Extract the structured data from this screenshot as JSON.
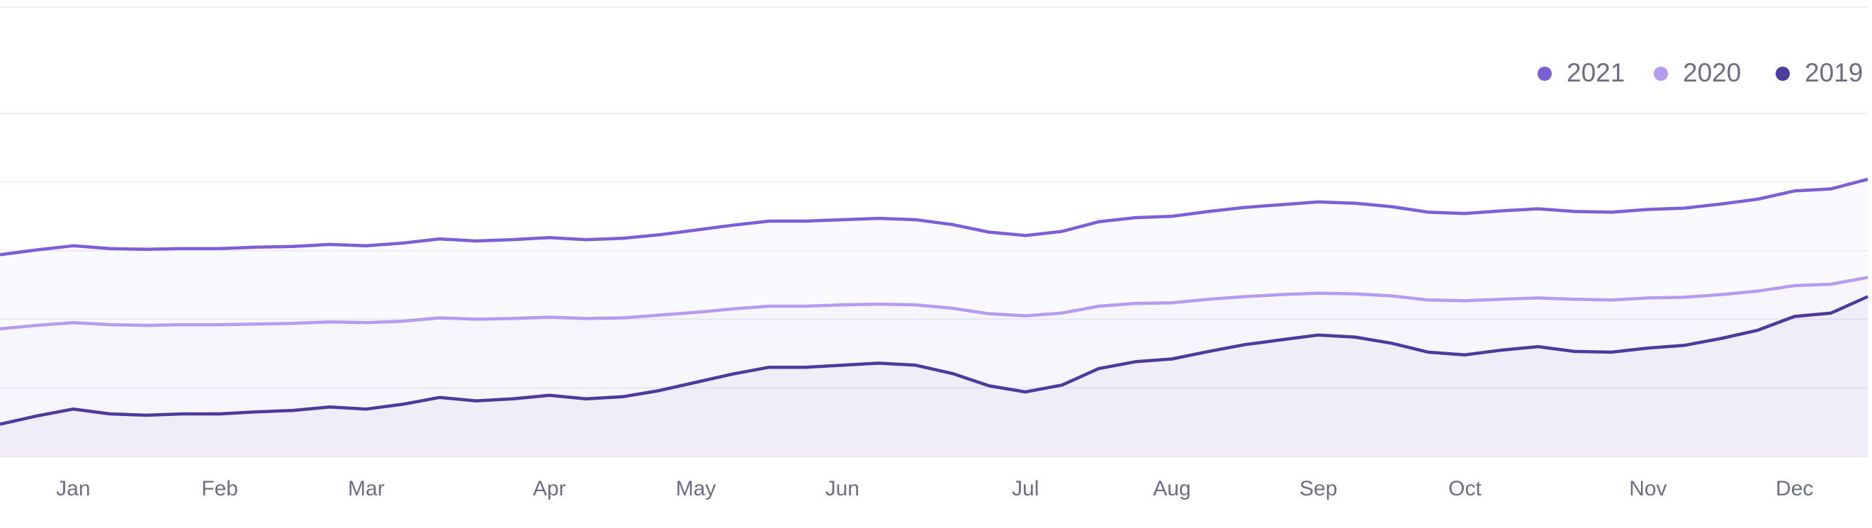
{
  "chart_data": {
    "type": "line",
    "categories": [
      null,
      null,
      "Jan",
      null,
      null,
      null,
      "Feb",
      null,
      null,
      null,
      "Mar",
      null,
      null,
      null,
      null,
      "Apr",
      null,
      null,
      null,
      "May",
      null,
      null,
      null,
      "Jun",
      null,
      null,
      null,
      null,
      "Jul",
      null,
      null,
      null,
      "Aug",
      null,
      null,
      null,
      "Sep",
      null,
      null,
      null,
      "Oct",
      null,
      null,
      null,
      null,
      "Nov",
      null,
      null,
      null,
      "Dec",
      null,
      null
    ],
    "series": [
      {
        "name": "2021",
        "color": "#7b5fd6",
        "values": [
          2.94,
          3.01,
          3.07,
          3.03,
          3.02,
          3.03,
          3.03,
          3.05,
          3.06,
          3.09,
          3.07,
          3.11,
          3.17,
          3.14,
          3.16,
          3.19,
          3.16,
          3.18,
          3.23,
          3.3,
          3.37,
          3.43,
          3.43,
          3.45,
          3.47,
          3.45,
          3.38,
          3.27,
          3.22,
          3.28,
          3.42,
          3.48,
          3.5,
          3.57,
          3.63,
          3.67,
          3.71,
          3.69,
          3.64,
          3.56,
          3.54,
          3.58,
          3.61,
          3.57,
          3.56,
          3.6,
          3.62,
          3.68,
          3.75,
          3.87,
          3.9,
          4.04
        ]
      },
      {
        "name": "2020",
        "color": "#b49cf0",
        "values": [
          1.86,
          1.91,
          1.95,
          1.92,
          1.91,
          1.92,
          1.92,
          1.93,
          1.94,
          1.96,
          1.95,
          1.97,
          2.02,
          2.0,
          2.01,
          2.03,
          2.01,
          2.02,
          2.06,
          2.1,
          2.15,
          2.19,
          2.19,
          2.21,
          2.22,
          2.21,
          2.16,
          2.08,
          2.05,
          2.09,
          2.19,
          2.23,
          2.24,
          2.29,
          2.33,
          2.36,
          2.38,
          2.37,
          2.34,
          2.28,
          2.27,
          2.29,
          2.31,
          2.29,
          2.28,
          2.31,
          2.32,
          2.36,
          2.41,
          2.49,
          2.51,
          2.61
        ]
      },
      {
        "name": "2019",
        "color": "#4c3a9c",
        "values": [
          0.47,
          0.59,
          0.69,
          0.62,
          0.6,
          0.62,
          0.62,
          0.65,
          0.67,
          0.72,
          0.69,
          0.76,
          0.86,
          0.81,
          0.84,
          0.89,
          0.84,
          0.87,
          0.96,
          1.08,
          1.2,
          1.3,
          1.3,
          1.33,
          1.36,
          1.33,
          1.21,
          1.03,
          0.94,
          1.04,
          1.28,
          1.38,
          1.42,
          1.53,
          1.63,
          1.7,
          1.77,
          1.74,
          1.65,
          1.52,
          1.48,
          1.55,
          1.6,
          1.53,
          1.52,
          1.58,
          1.62,
          1.72,
          1.84,
          2.04,
          2.09,
          2.33
        ]
      }
    ],
    "ylim": [
      0,
      5
    ],
    "yticks": [
      0,
      1,
      2,
      3,
      4,
      5
    ],
    "grid": true,
    "legend": "top-right"
  }
}
